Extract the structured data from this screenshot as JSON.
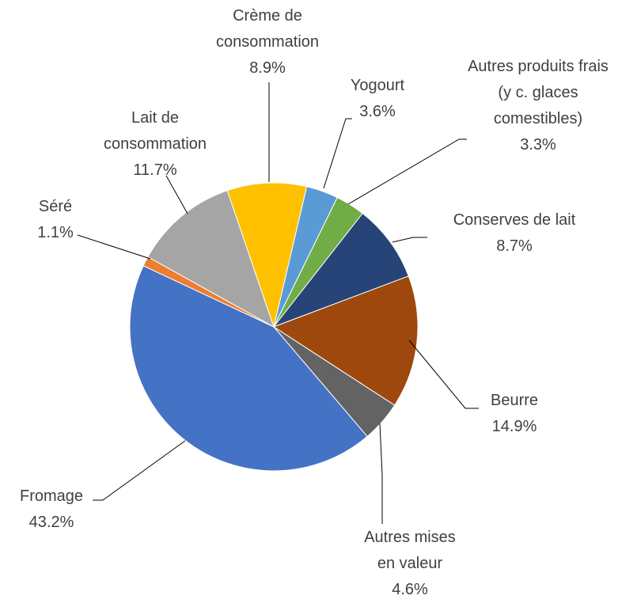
{
  "chart_data": {
    "type": "pie",
    "categories": [
      "Yogourt",
      "Autres produits frais\n(y c. glaces\ncomestibles)",
      "Conserves de lait",
      "Beurre",
      "Autres mises\nen valeur",
      "Fromage",
      "Séré",
      "Lait de\nconsommation",
      "Crème de\nconsommation"
    ],
    "values": [
      3.6,
      3.3,
      8.7,
      14.9,
      4.6,
      43.2,
      1.1,
      11.7,
      8.9
    ],
    "value_labels": [
      "3.6%",
      "3.3%",
      "8.7%",
      "14.9%",
      "4.6%",
      "43.2%",
      "1.1%",
      "11.7%",
      "8.9%"
    ],
    "colors": [
      "#5b9bd5",
      "#70ad47",
      "#264478",
      "#9e480e",
      "#636363",
      "#4472c4",
      "#ed7d31",
      "#a5a5a5",
      "#ffc000"
    ]
  }
}
